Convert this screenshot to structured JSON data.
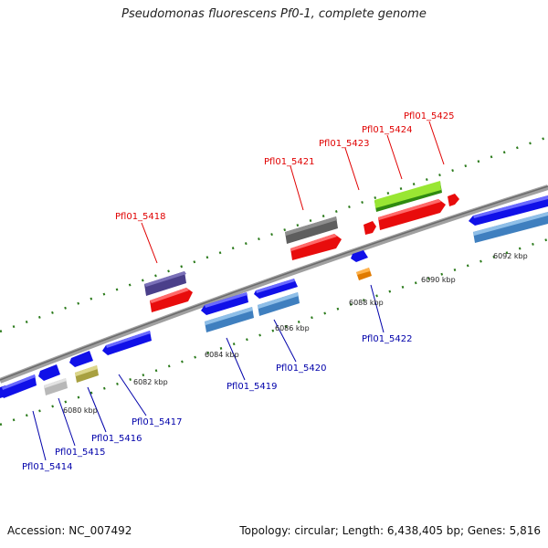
{
  "title": "Pseudomonas fluorescens Pf0-1, complete genome",
  "footer": {
    "accession_label": "Accession: NC_007492",
    "summary": "Topology: circular; Length: 6,438,405 bp; Genes: 5,816"
  },
  "colors": {
    "forward_label": "#e00000",
    "reverse_label": "#0000aa",
    "backbone": "#8a8a8a",
    "tick": "#2a7a1a"
  },
  "scale_labels": [
    "6080 kbp",
    "6082 kbp",
    "6084 kbp",
    "6086 kbp",
    "6088 kbp",
    "6090 kbp",
    "6092 kbp"
  ],
  "forward_genes": [
    {
      "label": "Pfl01_5418",
      "color": "#4a3f8a"
    },
    {
      "label": "Pfl01_5421",
      "color": "#6b6b6b"
    },
    {
      "label": "Pfl01_5423",
      "color": "#ff1a1a"
    },
    {
      "label": "Pfl01_5424",
      "color": "#99e633"
    },
    {
      "label": "Pfl01_5425",
      "color": "#ff1a1a"
    }
  ],
  "reverse_genes": [
    {
      "label": "Pfl01_5414",
      "color": "#1a1aff"
    },
    {
      "label": "Pfl01_5415",
      "color": "#c8c8c8"
    },
    {
      "label": "Pfl01_5416",
      "color": "#c8c060"
    },
    {
      "label": "Pfl01_5417",
      "color": "#1a1aff"
    },
    {
      "label": "Pfl01_5419",
      "color": "#4f8fcf"
    },
    {
      "label": "Pfl01_5420",
      "color": "#4f8fcf"
    },
    {
      "label": "Pfl01_5422",
      "color": "#ff9a10"
    }
  ]
}
